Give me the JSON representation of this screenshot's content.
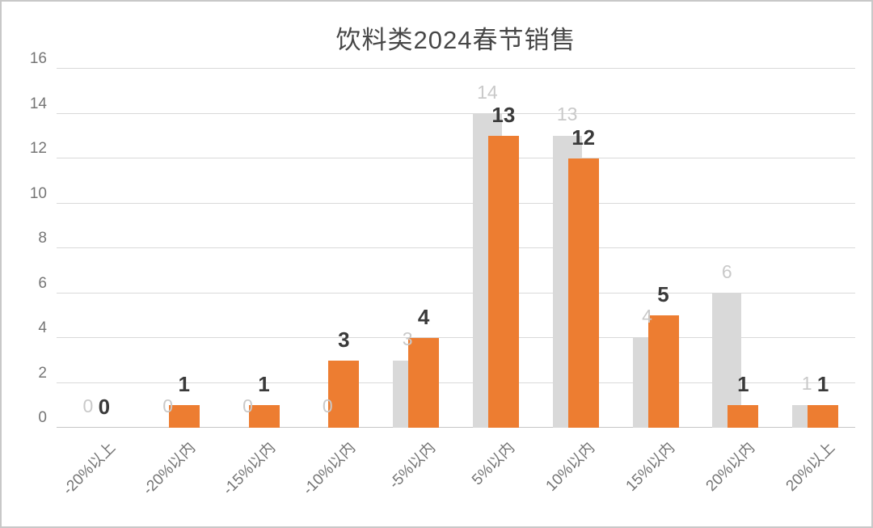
{
  "chart_data": {
    "type": "bar",
    "title": "饮料类2024春节销售",
    "categories": [
      "-20%以上",
      "-20%以内",
      "-15%以内",
      "-10%以内",
      "-5%以内",
      "5%以内",
      "10%以内",
      "15%以内",
      "20%以内",
      "20%以上"
    ],
    "series": [
      {
        "name": "gray-series",
        "color": "#d9d9d9",
        "label_color": "#c9c9c9",
        "values": [
          0,
          0,
          0,
          0,
          3,
          14,
          13,
          4,
          6,
          1
        ]
      },
      {
        "name": "orange-series",
        "color": "#ed7d31",
        "label_color": "#3a3a3a",
        "values": [
          0,
          1,
          1,
          3,
          4,
          13,
          12,
          5,
          1,
          1
        ]
      }
    ],
    "xlabel": "",
    "ylabel": "",
    "ylim": [
      0,
      16
    ],
    "yticks": [
      0,
      2,
      4,
      6,
      8,
      10,
      12,
      14,
      16
    ],
    "grid": "horizontal",
    "legend": "none",
    "axis_label_color": "#757575",
    "gridline_color": "#d9d9d9",
    "baseline_color": "#c6c6c6",
    "title_color": "#474747",
    "frame_border_color": "#c8c8c8",
    "background": "#ffffff"
  }
}
